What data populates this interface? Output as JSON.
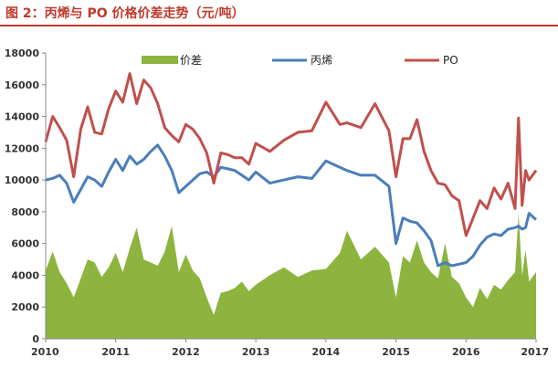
{
  "figure_title": "图 2：丙烯与 PO 价格价差走势（元/吨）",
  "colors": {
    "spread": "#8db43e",
    "propylene": "#4a7ebb",
    "po": "#c0504d",
    "title": "#c0392b",
    "axis": "#888888"
  },
  "chart_data": {
    "type": "area",
    "title": "图 2：丙烯与 PO 价格价差走势（元/吨）",
    "xlabel": "",
    "ylabel": "",
    "ylim": [
      0,
      18000
    ],
    "xlim": [
      2010,
      2017
    ],
    "grid": false,
    "legend": "top",
    "x_ticks": [
      "2010",
      "2011",
      "2012",
      "2013",
      "2014",
      "2015",
      "2016",
      "2017"
    ],
    "y_ticks": [
      "0",
      "2000",
      "4000",
      "6000",
      "8000",
      "10000",
      "12000",
      "14000",
      "16000",
      "18000"
    ],
    "series": [
      {
        "name": "价差",
        "type": "area",
        "color": "#8db43e",
        "x": [
          2010.0,
          2010.1,
          2010.2,
          2010.3,
          2010.4,
          2010.5,
          2010.6,
          2010.7,
          2010.8,
          2010.9,
          2011.0,
          2011.1,
          2011.2,
          2011.3,
          2011.4,
          2011.5,
          2011.6,
          2011.7,
          2011.8,
          2011.9,
          2012.0,
          2012.1,
          2012.2,
          2012.3,
          2012.4,
          2012.5,
          2012.6,
          2012.7,
          2012.8,
          2012.9,
          2013.0,
          2013.2,
          2013.4,
          2013.6,
          2013.8,
          2014.0,
          2014.2,
          2014.3,
          2014.5,
          2014.7,
          2014.9,
          2015.0,
          2015.1,
          2015.2,
          2015.3,
          2015.4,
          2015.5,
          2015.6,
          2015.7,
          2015.8,
          2015.9,
          2016.0,
          2016.1,
          2016.2,
          2016.3,
          2016.4,
          2016.5,
          2016.6,
          2016.7,
          2016.75,
          2016.8,
          2016.85,
          2016.9,
          2017.0
        ],
        "y": [
          4300,
          5500,
          4200,
          3500,
          2600,
          3800,
          5000,
          4800,
          3900,
          4500,
          5400,
          4200,
          5700,
          7000,
          5000,
          4800,
          4600,
          5500,
          7100,
          4200,
          5300,
          4300,
          3800,
          2600,
          1500,
          2900,
          3000,
          3200,
          3600,
          3000,
          3400,
          4000,
          4500,
          3900,
          4300,
          4400,
          5400,
          6800,
          5000,
          5800,
          4800,
          2600,
          5200,
          4800,
          6200,
          4800,
          4200,
          3800,
          6000,
          3900,
          3500,
          2600,
          2000,
          3200,
          2500,
          3400,
          3100,
          3700,
          4200,
          7900,
          4000,
          5600,
          3600,
          4200
        ]
      },
      {
        "name": "丙烯",
        "type": "line",
        "color": "#4a7ebb",
        "x": [
          2010.0,
          2010.1,
          2010.2,
          2010.3,
          2010.4,
          2010.5,
          2010.6,
          2010.7,
          2010.8,
          2010.9,
          2011.0,
          2011.1,
          2011.2,
          2011.3,
          2011.4,
          2011.5,
          2011.6,
          2011.7,
          2011.8,
          2011.9,
          2012.0,
          2012.1,
          2012.2,
          2012.3,
          2012.4,
          2012.5,
          2012.6,
          2012.7,
          2012.8,
          2012.9,
          2013.0,
          2013.2,
          2013.4,
          2013.6,
          2013.8,
          2014.0,
          2014.2,
          2014.3,
          2014.5,
          2014.7,
          2014.9,
          2015.0,
          2015.1,
          2015.2,
          2015.3,
          2015.4,
          2015.5,
          2015.6,
          2015.7,
          2015.8,
          2015.9,
          2016.0,
          2016.1,
          2016.2,
          2016.3,
          2016.4,
          2016.5,
          2016.6,
          2016.7,
          2016.75,
          2016.8,
          2016.85,
          2016.9,
          2017.0
        ],
        "y": [
          10000,
          10100,
          10300,
          9800,
          8600,
          9400,
          10200,
          10000,
          9600,
          10500,
          11300,
          10600,
          11500,
          11000,
          11300,
          11800,
          12200,
          11500,
          10600,
          9200,
          9600,
          10000,
          10400,
          10500,
          10200,
          10800,
          10700,
          10600,
          10300,
          10000,
          10500,
          9800,
          10000,
          10200,
          10100,
          11200,
          10800,
          10600,
          10300,
          10300,
          9600,
          6000,
          7600,
          7400,
          7300,
          6800,
          6200,
          4600,
          4800,
          4600,
          4700,
          4800,
          5200,
          5900,
          6400,
          6600,
          6500,
          6900,
          7000,
          7100,
          6900,
          7000,
          7900,
          7500
        ]
      },
      {
        "name": "PO",
        "type": "line",
        "color": "#c0504d",
        "x": [
          2010.0,
          2010.1,
          2010.2,
          2010.3,
          2010.4,
          2010.5,
          2010.6,
          2010.7,
          2010.8,
          2010.9,
          2011.0,
          2011.1,
          2011.2,
          2011.3,
          2011.4,
          2011.5,
          2011.6,
          2011.7,
          2011.8,
          2011.9,
          2012.0,
          2012.1,
          2012.2,
          2012.3,
          2012.4,
          2012.5,
          2012.6,
          2012.7,
          2012.8,
          2012.9,
          2013.0,
          2013.2,
          2013.4,
          2013.6,
          2013.8,
          2014.0,
          2014.2,
          2014.3,
          2014.5,
          2014.7,
          2014.9,
          2015.0,
          2015.1,
          2015.2,
          2015.3,
          2015.4,
          2015.5,
          2015.6,
          2015.7,
          2015.8,
          2015.9,
          2016.0,
          2016.1,
          2016.2,
          2016.3,
          2016.4,
          2016.5,
          2016.6,
          2016.7,
          2016.75,
          2016.8,
          2016.85,
          2016.9,
          2017.0
        ],
        "y": [
          12400,
          14000,
          13300,
          12500,
          10200,
          13200,
          14600,
          13000,
          12900,
          14500,
          15600,
          14900,
          16700,
          14800,
          16300,
          15800,
          14800,
          13300,
          12800,
          12400,
          13500,
          13200,
          12600,
          11700,
          9800,
          11700,
          11600,
          11400,
          11400,
          11000,
          12300,
          11800,
          12500,
          13000,
          13100,
          14900,
          13500,
          13600,
          13300,
          14800,
          13100,
          10200,
          12600,
          12600,
          13800,
          11800,
          10600,
          9800,
          9700,
          9000,
          8700,
          6500,
          7600,
          8700,
          8200,
          9500,
          8800,
          9800,
          8200,
          13900,
          8400,
          10600,
          10000,
          10600
        ]
      }
    ]
  }
}
